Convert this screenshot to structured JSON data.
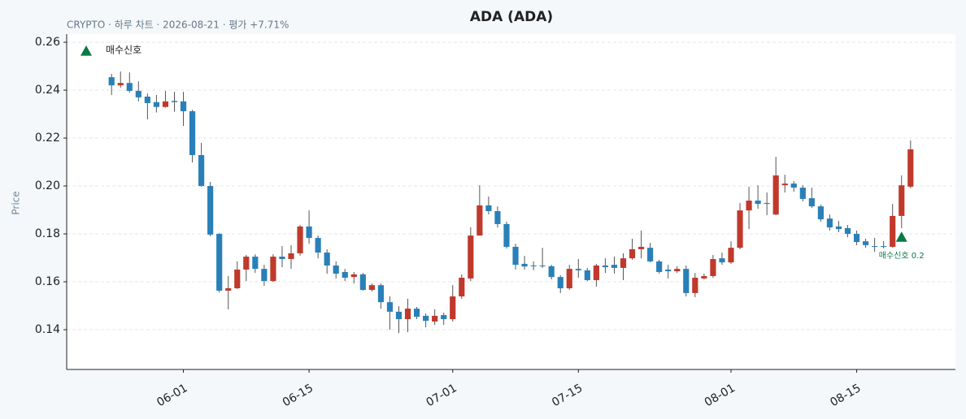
{
  "chart_data": {
    "type": "candlestick",
    "title": "ADA (ADA)",
    "subtitle": "CRYPTO · 하루 차트 · 2026-08-21 · 평가 +7.71%",
    "y_label": "Price",
    "up_color": "#c0392b",
    "down_color": "#2980b9",
    "x": [
      "2026-05-24",
      "2026-05-25",
      "2026-05-26",
      "2026-05-27",
      "2026-05-28",
      "2026-05-29",
      "2026-05-30",
      "2026-05-31",
      "2026-06-01",
      "2026-06-02",
      "2026-06-03",
      "2026-06-04",
      "2026-06-05",
      "2026-06-06",
      "2026-06-07",
      "2026-06-08",
      "2026-06-09",
      "2026-06-10",
      "2026-06-11",
      "2026-06-12",
      "2026-06-13",
      "2026-06-14",
      "2026-06-15",
      "2026-06-16",
      "2026-06-17",
      "2026-06-18",
      "2026-06-19",
      "2026-06-20",
      "2026-06-21",
      "2026-06-22",
      "2026-06-23",
      "2026-06-24",
      "2026-06-25",
      "2026-06-26",
      "2026-06-27",
      "2026-06-28",
      "2026-06-29",
      "2026-06-30",
      "2026-07-01",
      "2026-07-02",
      "2026-07-03",
      "2026-07-04",
      "2026-07-05",
      "2026-07-06",
      "2026-07-07",
      "2026-07-08",
      "2026-07-09",
      "2026-07-10",
      "2026-07-11",
      "2026-07-12",
      "2026-07-13",
      "2026-07-14",
      "2026-07-15",
      "2026-07-16",
      "2026-07-17",
      "2026-07-18",
      "2026-07-19",
      "2026-07-20",
      "2026-07-21",
      "2026-07-22",
      "2026-07-23",
      "2026-07-24",
      "2026-07-25",
      "2026-07-26",
      "2026-07-27",
      "2026-07-28",
      "2026-07-29",
      "2026-07-30",
      "2026-07-31",
      "2026-08-01",
      "2026-08-02",
      "2026-08-03",
      "2026-08-04",
      "2026-08-05",
      "2026-08-06",
      "2026-08-07",
      "2026-08-08",
      "2026-08-09",
      "2026-08-10",
      "2026-08-11",
      "2026-08-12",
      "2026-08-13",
      "2026-08-14",
      "2026-08-15",
      "2026-08-16",
      "2026-08-17",
      "2026-08-18",
      "2026-08-19",
      "2026-08-20",
      "2026-08-21"
    ],
    "open": [
      0.2454,
      0.242,
      0.243,
      0.2397,
      0.2373,
      0.235,
      0.233,
      0.2355,
      0.2353,
      0.2312,
      0.2129,
      0.2,
      0.18,
      0.1563,
      0.1573,
      0.1651,
      0.1705,
      0.1654,
      0.1603,
      0.1705,
      0.1695,
      0.1719,
      0.1831,
      0.1783,
      0.1722,
      0.1668,
      0.1641,
      0.162,
      0.1631,
      0.1566,
      0.1586,
      0.1515,
      0.1475,
      0.1444,
      0.1488,
      0.1458,
      0.1434,
      0.1461,
      0.1444,
      0.1539,
      0.1614,
      0.1793,
      0.1919,
      0.1895,
      0.1841,
      0.1746,
      0.1675,
      0.1668,
      0.1668,
      0.1665,
      0.162,
      0.1573,
      0.1654,
      0.1648,
      0.1607,
      0.1668,
      0.1671,
      0.1658,
      0.1698,
      0.1736,
      0.1742,
      0.1685,
      0.1651,
      0.1644,
      0.1654,
      0.1553,
      0.1614,
      0.1624,
      0.1698,
      0.1681,
      0.1742,
      0.1898,
      0.1939,
      0.1929,
      0.1881,
      0.2003,
      0.201,
      0.1993,
      0.1949,
      0.1915,
      0.1864,
      0.1831,
      0.1824,
      0.18,
      0.1769,
      0.1749,
      0.1749,
      0.1746,
      0.1875,
      0.1997
    ],
    "high": [
      0.2468,
      0.2478,
      0.2474,
      0.2437,
      0.2386,
      0.238,
      0.2397,
      0.2393,
      0.2393,
      0.2318,
      0.218,
      0.2017,
      0.1803,
      0.1624,
      0.1685,
      0.1712,
      0.1715,
      0.1671,
      0.1715,
      0.1749,
      0.1753,
      0.1837,
      0.1898,
      0.1793,
      0.1736,
      0.1685,
      0.1654,
      0.1641,
      0.1637,
      0.1593,
      0.1593,
      0.1539,
      0.1498,
      0.1529,
      0.1495,
      0.1468,
      0.1485,
      0.1471,
      0.1586,
      0.1631,
      0.1827,
      0.2003,
      0.1956,
      0.1915,
      0.1851,
      0.1759,
      0.1708,
      0.1685,
      0.1742,
      0.1671,
      0.1627,
      0.1671,
      0.1695,
      0.1658,
      0.1675,
      0.1698,
      0.1705,
      0.1719,
      0.178,
      0.1814,
      0.1763,
      0.1692,
      0.1671,
      0.1665,
      0.1668,
      0.1637,
      0.1634,
      0.1712,
      0.1722,
      0.1769,
      0.1929,
      0.1997,
      0.2003,
      0.1973,
      0.2122,
      0.2047,
      0.202,
      0.2003,
      0.1993,
      0.1922,
      0.1881,
      0.1854,
      0.1837,
      0.1814,
      0.178,
      0.1783,
      0.177,
      0.1925,
      0.2044,
      0.219
    ],
    "low": [
      0.238,
      0.241,
      0.239,
      0.2353,
      0.2278,
      0.2307,
      0.2327,
      0.231,
      0.2251,
      0.2098,
      0.1997,
      0.179,
      0.1556,
      0.1485,
      0.157,
      0.1603,
      0.1637,
      0.1583,
      0.16,
      0.1661,
      0.1654,
      0.1709,
      0.1759,
      0.1698,
      0.1634,
      0.1614,
      0.1603,
      0.1593,
      0.1563,
      0.1559,
      0.1488,
      0.14,
      0.1386,
      0.139,
      0.1444,
      0.141,
      0.142,
      0.142,
      0.1434,
      0.1529,
      0.1603,
      0.1793,
      0.1881,
      0.1827,
      0.1739,
      0.1651,
      0.1651,
      0.1648,
      0.1658,
      0.161,
      0.1553,
      0.1566,
      0.1617,
      0.1603,
      0.158,
      0.1637,
      0.1634,
      0.1607,
      0.1692,
      0.1698,
      0.1681,
      0.1634,
      0.1614,
      0.1637,
      0.1539,
      0.1536,
      0.161,
      0.1617,
      0.1671,
      0.1675,
      0.1736,
      0.182,
      0.1905,
      0.1878,
      0.1878,
      0.1973,
      0.1976,
      0.1936,
      0.1908,
      0.1851,
      0.1814,
      0.1807,
      0.1786,
      0.1753,
      0.1742,
      0.1725,
      0.1739,
      0.1742,
      0.1824,
      0.199
    ],
    "close": [
      0.242,
      0.243,
      0.2397,
      0.237,
      0.2346,
      0.233,
      0.2353,
      0.235,
      0.2312,
      0.2129,
      0.2,
      0.1797,
      0.1563,
      0.1573,
      0.1651,
      0.1705,
      0.1654,
      0.1603,
      0.1705,
      0.1695,
      0.1719,
      0.1831,
      0.1783,
      0.1722,
      0.1668,
      0.1634,
      0.1617,
      0.1631,
      0.1566,
      0.1586,
      0.1515,
      0.1475,
      0.1444,
      0.1488,
      0.1454,
      0.1437,
      0.1458,
      0.1444,
      0.1539,
      0.1617,
      0.1793,
      0.1919,
      0.1895,
      0.1841,
      0.1746,
      0.1671,
      0.1664,
      0.1665,
      0.1665,
      0.162,
      0.1573,
      0.1654,
      0.1648,
      0.1607,
      0.1668,
      0.1661,
      0.1658,
      0.1698,
      0.1736,
      0.1746,
      0.1685,
      0.1641,
      0.1644,
      0.1654,
      0.1553,
      0.1617,
      0.1624,
      0.1695,
      0.1681,
      0.1742,
      0.1898,
      0.1939,
      0.1925,
      0.1925,
      0.2044,
      0.201,
      0.1993,
      0.1946,
      0.1915,
      0.1861,
      0.1827,
      0.182,
      0.18,
      0.1766,
      0.1753,
      0.1746,
      0.1746,
      0.1875,
      0.2003,
      0.2153
    ],
    "signals": {
      "name": "매수신호",
      "color": "#0b7a45",
      "x": [
        "2026-08-20"
      ],
      "values": [
        0.1786
      ],
      "labels": [
        "매수신호 0.2"
      ]
    },
    "xlim": [
      "2026-05-19",
      "2026-08-26"
    ],
    "xticks": [
      {
        "value": "2026-06-01",
        "label": "06-01"
      },
      {
        "value": "2026-06-15",
        "label": "06-15"
      },
      {
        "value": "2026-07-01",
        "label": "07-01"
      },
      {
        "value": "2026-07-15",
        "label": "07-15"
      },
      {
        "value": "2026-08-01",
        "label": "08-01"
      },
      {
        "value": "2026-08-15",
        "label": "08-15"
      }
    ],
    "ylim": [
      0.1234,
      0.2634
    ],
    "yticks": [
      0.14,
      0.16,
      0.18,
      {
        "value": 0.2,
        "label": "0.20"
      },
      0.22,
      0.24,
      0.26
    ],
    "grid": true,
    "legend": "upper left"
  }
}
